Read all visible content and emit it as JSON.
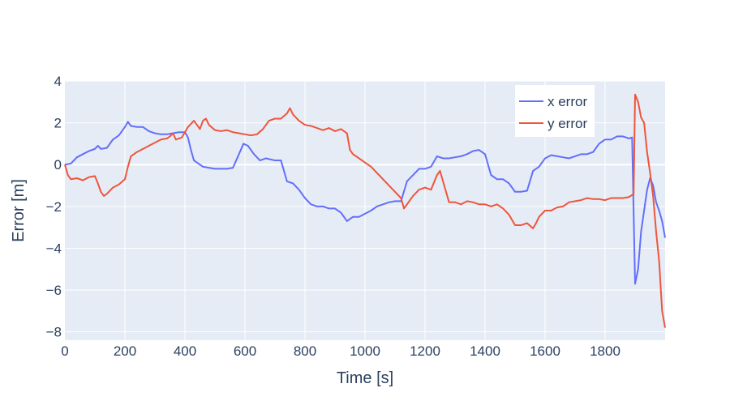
{
  "chart_data": {
    "type": "line",
    "title": "",
    "xlabel": "Time [s]",
    "ylabel": "Error [m]",
    "xlim": [
      0,
      2000
    ],
    "ylim": [
      -8.4,
      4.0
    ],
    "x_ticks": [
      0,
      200,
      400,
      600,
      800,
      1000,
      1200,
      1400,
      1600,
      1800
    ],
    "y_ticks": [
      -8,
      -6,
      -4,
      -2,
      0,
      2,
      4
    ],
    "x_tick_labels": [
      "0",
      "200",
      "400",
      "600",
      "800",
      "1000",
      "1200",
      "1400",
      "1600",
      "1800"
    ],
    "y_tick_labels": [
      "−8",
      "−6",
      "−4",
      "−2",
      "0",
      "2",
      "4"
    ],
    "grid": true,
    "legend_position": "top-right",
    "colors": {
      "plot_bg": "#e5ecf6",
      "grid": "#ffffff",
      "text": "#2a3f5f"
    },
    "series": [
      {
        "name": "x error",
        "color": "#636efa",
        "points": [
          [
            0,
            0.0
          ],
          [
            20,
            0.05
          ],
          [
            40,
            0.35
          ],
          [
            60,
            0.5
          ],
          [
            80,
            0.65
          ],
          [
            100,
            0.75
          ],
          [
            110,
            0.9
          ],
          [
            120,
            0.75
          ],
          [
            140,
            0.8
          ],
          [
            160,
            1.2
          ],
          [
            180,
            1.4
          ],
          [
            200,
            1.8
          ],
          [
            210,
            2.05
          ],
          [
            220,
            1.85
          ],
          [
            240,
            1.8
          ],
          [
            260,
            1.8
          ],
          [
            280,
            1.6
          ],
          [
            300,
            1.5
          ],
          [
            320,
            1.45
          ],
          [
            340,
            1.45
          ],
          [
            360,
            1.5
          ],
          [
            380,
            1.55
          ],
          [
            400,
            1.55
          ],
          [
            410,
            1.3
          ],
          [
            420,
            0.7
          ],
          [
            430,
            0.2
          ],
          [
            440,
            0.1
          ],
          [
            460,
            -0.1
          ],
          [
            480,
            -0.15
          ],
          [
            500,
            -0.2
          ],
          [
            520,
            -0.2
          ],
          [
            540,
            -0.2
          ],
          [
            560,
            -0.15
          ],
          [
            580,
            0.5
          ],
          [
            595,
            1.0
          ],
          [
            610,
            0.9
          ],
          [
            630,
            0.5
          ],
          [
            650,
            0.2
          ],
          [
            670,
            0.3
          ],
          [
            700,
            0.2
          ],
          [
            720,
            0.2
          ],
          [
            740,
            -0.8
          ],
          [
            760,
            -0.9
          ],
          [
            780,
            -1.2
          ],
          [
            800,
            -1.6
          ],
          [
            820,
            -1.9
          ],
          [
            840,
            -2.0
          ],
          [
            860,
            -2.0
          ],
          [
            880,
            -2.1
          ],
          [
            900,
            -2.1
          ],
          [
            920,
            -2.3
          ],
          [
            940,
            -2.7
          ],
          [
            960,
            -2.5
          ],
          [
            980,
            -2.5
          ],
          [
            1000,
            -2.35
          ],
          [
            1020,
            -2.2
          ],
          [
            1040,
            -2.0
          ],
          [
            1060,
            -1.9
          ],
          [
            1080,
            -1.8
          ],
          [
            1100,
            -1.75
          ],
          [
            1120,
            -1.75
          ],
          [
            1140,
            -0.8
          ],
          [
            1160,
            -0.5
          ],
          [
            1180,
            -0.2
          ],
          [
            1200,
            -0.2
          ],
          [
            1220,
            -0.1
          ],
          [
            1240,
            0.4
          ],
          [
            1260,
            0.3
          ],
          [
            1280,
            0.3
          ],
          [
            1300,
            0.35
          ],
          [
            1320,
            0.4
          ],
          [
            1340,
            0.5
          ],
          [
            1360,
            0.65
          ],
          [
            1380,
            0.7
          ],
          [
            1400,
            0.5
          ],
          [
            1420,
            -0.5
          ],
          [
            1440,
            -0.7
          ],
          [
            1460,
            -0.7
          ],
          [
            1480,
            -0.9
          ],
          [
            1500,
            -1.3
          ],
          [
            1520,
            -1.3
          ],
          [
            1540,
            -1.25
          ],
          [
            1560,
            -0.3
          ],
          [
            1580,
            -0.1
          ],
          [
            1600,
            0.3
          ],
          [
            1620,
            0.45
          ],
          [
            1640,
            0.4
          ],
          [
            1660,
            0.35
          ],
          [
            1680,
            0.3
          ],
          [
            1700,
            0.4
          ],
          [
            1720,
            0.5
          ],
          [
            1740,
            0.5
          ],
          [
            1760,
            0.6
          ],
          [
            1780,
            1.0
          ],
          [
            1800,
            1.2
          ],
          [
            1820,
            1.2
          ],
          [
            1840,
            1.35
          ],
          [
            1860,
            1.35
          ],
          [
            1880,
            1.25
          ],
          [
            1890,
            1.3
          ],
          [
            1900,
            -5.7
          ],
          [
            1910,
            -5.0
          ],
          [
            1920,
            -3.2
          ],
          [
            1930,
            -2.2
          ],
          [
            1940,
            -1.2
          ],
          [
            1950,
            -0.65
          ],
          [
            1960,
            -1.0
          ],
          [
            1970,
            -1.8
          ],
          [
            1980,
            -2.2
          ],
          [
            1990,
            -2.7
          ],
          [
            2000,
            -3.5
          ]
        ]
      },
      {
        "name": "y error",
        "color": "#ef553b",
        "points": [
          [
            0,
            0.0
          ],
          [
            10,
            -0.5
          ],
          [
            20,
            -0.7
          ],
          [
            40,
            -0.65
          ],
          [
            60,
            -0.75
          ],
          [
            80,
            -0.6
          ],
          [
            100,
            -0.55
          ],
          [
            110,
            -0.9
          ],
          [
            120,
            -1.3
          ],
          [
            130,
            -1.5
          ],
          [
            140,
            -1.4
          ],
          [
            160,
            -1.1
          ],
          [
            180,
            -0.95
          ],
          [
            200,
            -0.7
          ],
          [
            210,
            -0.1
          ],
          [
            220,
            0.4
          ],
          [
            240,
            0.6
          ],
          [
            260,
            0.75
          ],
          [
            280,
            0.9
          ],
          [
            300,
            1.05
          ],
          [
            320,
            1.2
          ],
          [
            340,
            1.25
          ],
          [
            350,
            1.35
          ],
          [
            360,
            1.5
          ],
          [
            370,
            1.2
          ],
          [
            380,
            1.25
          ],
          [
            390,
            1.3
          ],
          [
            400,
            1.55
          ],
          [
            410,
            1.8
          ],
          [
            430,
            2.1
          ],
          [
            440,
            1.9
          ],
          [
            450,
            1.7
          ],
          [
            460,
            2.1
          ],
          [
            470,
            2.2
          ],
          [
            480,
            1.9
          ],
          [
            500,
            1.65
          ],
          [
            520,
            1.6
          ],
          [
            540,
            1.65
          ],
          [
            560,
            1.55
          ],
          [
            580,
            1.5
          ],
          [
            600,
            1.45
          ],
          [
            620,
            1.4
          ],
          [
            640,
            1.45
          ],
          [
            660,
            1.7
          ],
          [
            680,
            2.1
          ],
          [
            700,
            2.2
          ],
          [
            720,
            2.2
          ],
          [
            740,
            2.45
          ],
          [
            750,
            2.7
          ],
          [
            760,
            2.4
          ],
          [
            780,
            2.1
          ],
          [
            800,
            1.9
          ],
          [
            820,
            1.85
          ],
          [
            840,
            1.75
          ],
          [
            860,
            1.65
          ],
          [
            880,
            1.75
          ],
          [
            900,
            1.6
          ],
          [
            920,
            1.7
          ],
          [
            940,
            1.5
          ],
          [
            950,
            0.7
          ],
          [
            960,
            0.5
          ],
          [
            980,
            0.3
          ],
          [
            1000,
            0.1
          ],
          [
            1020,
            -0.1
          ],
          [
            1040,
            -0.4
          ],
          [
            1060,
            -0.7
          ],
          [
            1080,
            -1.0
          ],
          [
            1100,
            -1.3
          ],
          [
            1120,
            -1.6
          ],
          [
            1130,
            -2.1
          ],
          [
            1140,
            -1.9
          ],
          [
            1160,
            -1.5
          ],
          [
            1180,
            -1.2
          ],
          [
            1200,
            -1.1
          ],
          [
            1220,
            -1.2
          ],
          [
            1240,
            -0.5
          ],
          [
            1250,
            -0.3
          ],
          [
            1260,
            -0.8
          ],
          [
            1280,
            -1.8
          ],
          [
            1300,
            -1.8
          ],
          [
            1320,
            -1.9
          ],
          [
            1340,
            -1.75
          ],
          [
            1360,
            -1.8
          ],
          [
            1380,
            -1.9
          ],
          [
            1400,
            -1.9
          ],
          [
            1420,
            -2.0
          ],
          [
            1440,
            -1.9
          ],
          [
            1460,
            -2.1
          ],
          [
            1480,
            -2.4
          ],
          [
            1500,
            -2.9
          ],
          [
            1520,
            -2.9
          ],
          [
            1540,
            -2.8
          ],
          [
            1560,
            -3.05
          ],
          [
            1570,
            -2.8
          ],
          [
            1580,
            -2.5
          ],
          [
            1600,
            -2.2
          ],
          [
            1620,
            -2.2
          ],
          [
            1640,
            -2.05
          ],
          [
            1660,
            -2.0
          ],
          [
            1680,
            -1.8
          ],
          [
            1700,
            -1.75
          ],
          [
            1720,
            -1.7
          ],
          [
            1740,
            -1.6
          ],
          [
            1760,
            -1.65
          ],
          [
            1780,
            -1.65
          ],
          [
            1800,
            -1.7
          ],
          [
            1820,
            -1.6
          ],
          [
            1840,
            -1.6
          ],
          [
            1860,
            -1.6
          ],
          [
            1880,
            -1.55
          ],
          [
            1890,
            -1.45
          ],
          [
            1895,
            -1.45
          ],
          [
            1900,
            3.35
          ],
          [
            1910,
            3.0
          ],
          [
            1920,
            2.25
          ],
          [
            1930,
            2.0
          ],
          [
            1940,
            0.6
          ],
          [
            1950,
            -0.4
          ],
          [
            1960,
            -1.5
          ],
          [
            1970,
            -3.2
          ],
          [
            1980,
            -4.6
          ],
          [
            1990,
            -7.0
          ],
          [
            2000,
            -7.8
          ]
        ]
      }
    ]
  }
}
